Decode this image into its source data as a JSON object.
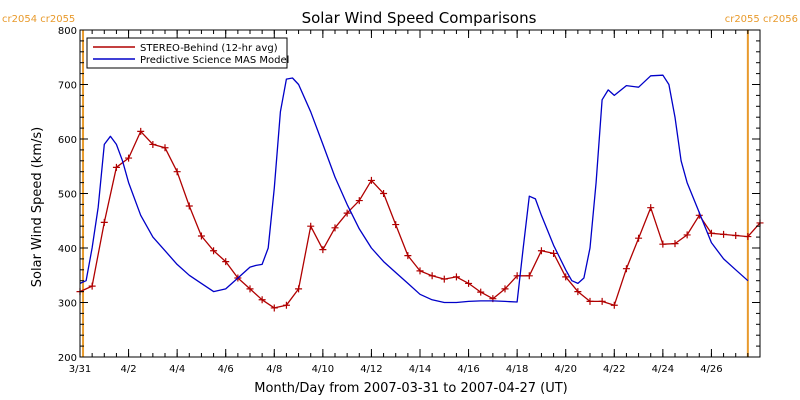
{
  "chart_data": {
    "type": "line",
    "title": "Solar Wind Speed Comparisons",
    "xlabel": "Month/Day from 2007-03-31 to 2007-04-27 (UT)",
    "ylabel": "Solar Wind Speed (km/s)",
    "xlim": [
      "2007-03-31",
      "2007-04-28T00:00"
    ],
    "ylim": [
      200,
      800
    ],
    "y_ticks": [
      200,
      300,
      400,
      500,
      600,
      700,
      800
    ],
    "x_tick_labels": [
      "3/31",
      "4/2",
      "4/4",
      "4/6",
      "4/8",
      "4/10",
      "4/12",
      "4/14",
      "4/16",
      "4/18",
      "4/20",
      "4/22",
      "4/24",
      "4/26"
    ],
    "x_tick_dates": [
      "2007-03-31",
      "2007-04-02",
      "2007-04-04",
      "2007-04-06",
      "2007-04-08",
      "2007-04-10",
      "2007-04-12",
      "2007-04-14",
      "2007-04-16",
      "2007-04-18",
      "2007-04-20",
      "2007-04-22",
      "2007-04-24",
      "2007-04-26"
    ],
    "grid": false,
    "legend_position": "top-left",
    "carrington_markers": [
      {
        "label_left": "cr2054",
        "label_right": "cr2055",
        "date": "2007-03-31T03:00",
        "side": "left"
      },
      {
        "label_left": "cr2055",
        "label_right": "cr2056",
        "date": "2007-04-27T12:00",
        "side": "right"
      }
    ],
    "marker_color": "#e89a2c",
    "series": [
      {
        "name": "STEREO-Behind (12-hr avg)",
        "color": "#b00000",
        "marker": "plus",
        "x": [
          "2007-03-31T00:00",
          "2007-03-31T12:00",
          "2007-04-01T00:00",
          "2007-04-01T12:00",
          "2007-04-02T00:00",
          "2007-04-02T12:00",
          "2007-04-03T00:00",
          "2007-04-03T12:00",
          "2007-04-04T00:00",
          "2007-04-04T12:00",
          "2007-04-05T00:00",
          "2007-04-05T12:00",
          "2007-04-06T00:00",
          "2007-04-06T12:00",
          "2007-04-07T00:00",
          "2007-04-07T12:00",
          "2007-04-08T00:00",
          "2007-04-08T12:00",
          "2007-04-09T00:00",
          "2007-04-09T12:00",
          "2007-04-10T00:00",
          "2007-04-10T12:00",
          "2007-04-11T00:00",
          "2007-04-11T12:00",
          "2007-04-12T00:00",
          "2007-04-12T12:00",
          "2007-04-13T00:00",
          "2007-04-13T12:00",
          "2007-04-14T00:00",
          "2007-04-14T12:00",
          "2007-04-15T00:00",
          "2007-04-15T12:00",
          "2007-04-16T00:00",
          "2007-04-16T12:00",
          "2007-04-17T00:00",
          "2007-04-17T12:00",
          "2007-04-18T00:00",
          "2007-04-18T12:00",
          "2007-04-19T00:00",
          "2007-04-19T12:00",
          "2007-04-20T00:00",
          "2007-04-20T12:00",
          "2007-04-21T00:00",
          "2007-04-21T12:00",
          "2007-04-22T00:00",
          "2007-04-22T12:00",
          "2007-04-23T00:00",
          "2007-04-23T12:00",
          "2007-04-24T00:00",
          "2007-04-24T12:00",
          "2007-04-25T00:00",
          "2007-04-25T12:00",
          "2007-04-26T00:00",
          "2007-04-26T12:00",
          "2007-04-27T00:00",
          "2007-04-27T12:00",
          "2007-04-28T00:00"
        ],
        "values": [
          320,
          330,
          447,
          548,
          565,
          614,
          590,
          584,
          540,
          477,
          422,
          395,
          375,
          345,
          325,
          305,
          290,
          295,
          325,
          440,
          397,
          437,
          464,
          487,
          524,
          500,
          443,
          386,
          358,
          349,
          343,
          347,
          335,
          319,
          307,
          325,
          349,
          349,
          395,
          390,
          347,
          320,
          302,
          302,
          295,
          362,
          418,
          474,
          407,
          408,
          424,
          460,
          427,
          425,
          423,
          421,
          446
        ]
      },
      {
        "name": "Predictive Science MAS Model",
        "color": "#0000c8",
        "marker": "none",
        "x": [
          "2007-03-31T00:00",
          "2007-03-31T06:00",
          "2007-03-31T12:00",
          "2007-03-31T18:00",
          "2007-04-01T00:00",
          "2007-04-01T06:00",
          "2007-04-01T12:00",
          "2007-04-01T18:00",
          "2007-04-02T00:00",
          "2007-04-02T12:00",
          "2007-04-03T00:00",
          "2007-04-03T12:00",
          "2007-04-04T00:00",
          "2007-04-04T12:00",
          "2007-04-05T00:00",
          "2007-04-05T12:00",
          "2007-04-06T00:00",
          "2007-04-06T12:00",
          "2007-04-07T00:00",
          "2007-04-07T06:00",
          "2007-04-07T12:00",
          "2007-04-07T18:00",
          "2007-04-08T00:00",
          "2007-04-08T06:00",
          "2007-04-08T12:00",
          "2007-04-08T18:00",
          "2007-04-09T00:00",
          "2007-04-09T12:00",
          "2007-04-10T00:00",
          "2007-04-10T12:00",
          "2007-04-11T00:00",
          "2007-04-11T12:00",
          "2007-04-12T00:00",
          "2007-04-12T12:00",
          "2007-04-13T00:00",
          "2007-04-13T12:00",
          "2007-04-14T00:00",
          "2007-04-14T12:00",
          "2007-04-15T00:00",
          "2007-04-15T12:00",
          "2007-04-16T00:00",
          "2007-04-16T12:00",
          "2007-04-17T00:00",
          "2007-04-17T12:00",
          "2007-04-18T00:00",
          "2007-04-18T06:00",
          "2007-04-18T12:00",
          "2007-04-18T18:00",
          "2007-04-19T00:00",
          "2007-04-19T12:00",
          "2007-04-20T00:00",
          "2007-04-20T06:00",
          "2007-04-20T12:00",
          "2007-04-20T18:00",
          "2007-04-21T00:00",
          "2007-04-21T06:00",
          "2007-04-21T12:00",
          "2007-04-21T18:00",
          "2007-04-22T00:00",
          "2007-04-22T12:00",
          "2007-04-23T00:00",
          "2007-04-23T12:00",
          "2007-04-24T00:00",
          "2007-04-24T06:00",
          "2007-04-24T12:00",
          "2007-04-24T18:00",
          "2007-04-25T00:00",
          "2007-04-25T12:00",
          "2007-04-26T00:00",
          "2007-04-26T12:00",
          "2007-04-27T00:00",
          "2007-04-27T12:00"
        ],
        "values": [
          335,
          340,
          400,
          475,
          590,
          605,
          590,
          560,
          520,
          460,
          420,
          395,
          370,
          350,
          335,
          320,
          325,
          345,
          365,
          368,
          370,
          400,
          510,
          650,
          710,
          712,
          700,
          650,
          590,
          530,
          480,
          435,
          400,
          375,
          355,
          335,
          315,
          305,
          300,
          300,
          302,
          303,
          303,
          302,
          301,
          400,
          495,
          490,
          460,
          405,
          360,
          340,
          335,
          345,
          400,
          520,
          672,
          690,
          680,
          698,
          695,
          716,
          717,
          700,
          640,
          560,
          520,
          465,
          410,
          380,
          360,
          340
        ]
      }
    ]
  }
}
